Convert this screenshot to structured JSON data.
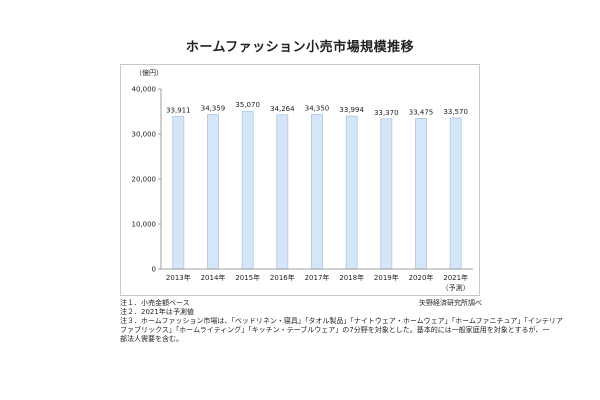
{
  "title": "ホームファッション小売市場規模推移",
  "chart_data": {
    "type": "bar",
    "unit_label": "（億円）",
    "categories": [
      "2013年",
      "2014年",
      "2015年",
      "2016年",
      "2017年",
      "2018年",
      "2019年",
      "2020年",
      "2021年"
    ],
    "category_sublabels": [
      "",
      "",
      "",
      "",
      "",
      "",
      "",
      "",
      "（予測）"
    ],
    "values": [
      33911,
      34359,
      35070,
      34264,
      34350,
      33994,
      33370,
      33475,
      33570
    ],
    "value_labels": [
      "33,911",
      "34,359",
      "35,070",
      "34,264",
      "34,350",
      "33,994",
      "33,370",
      "33,475",
      "33,570"
    ],
    "yticks": [
      "0",
      "10,000",
      "20,000",
      "30,000",
      "40,000"
    ],
    "ylim": [
      0,
      40000
    ],
    "grid": false,
    "bar_color": "#d6e6f9",
    "bar_edge_color": "#9db8de"
  },
  "notes": [
    "注１．小売金額ベース",
    "注２．2021年は予測値",
    "注３．ホームファッション市場は、「ベッドリネン・寝具」「タオル製品」「ナイトウェア・ホームウェア」「ホームファニチュア」「インテリア",
    "ファブリックス」「ホームライティング」「キッチン・テーブルウェア」の7分野を対象とした。基本的には一般家庭用を対象とするが、一",
    "部法人需要を含む。"
  ],
  "credit": "矢野経済研究所調べ"
}
